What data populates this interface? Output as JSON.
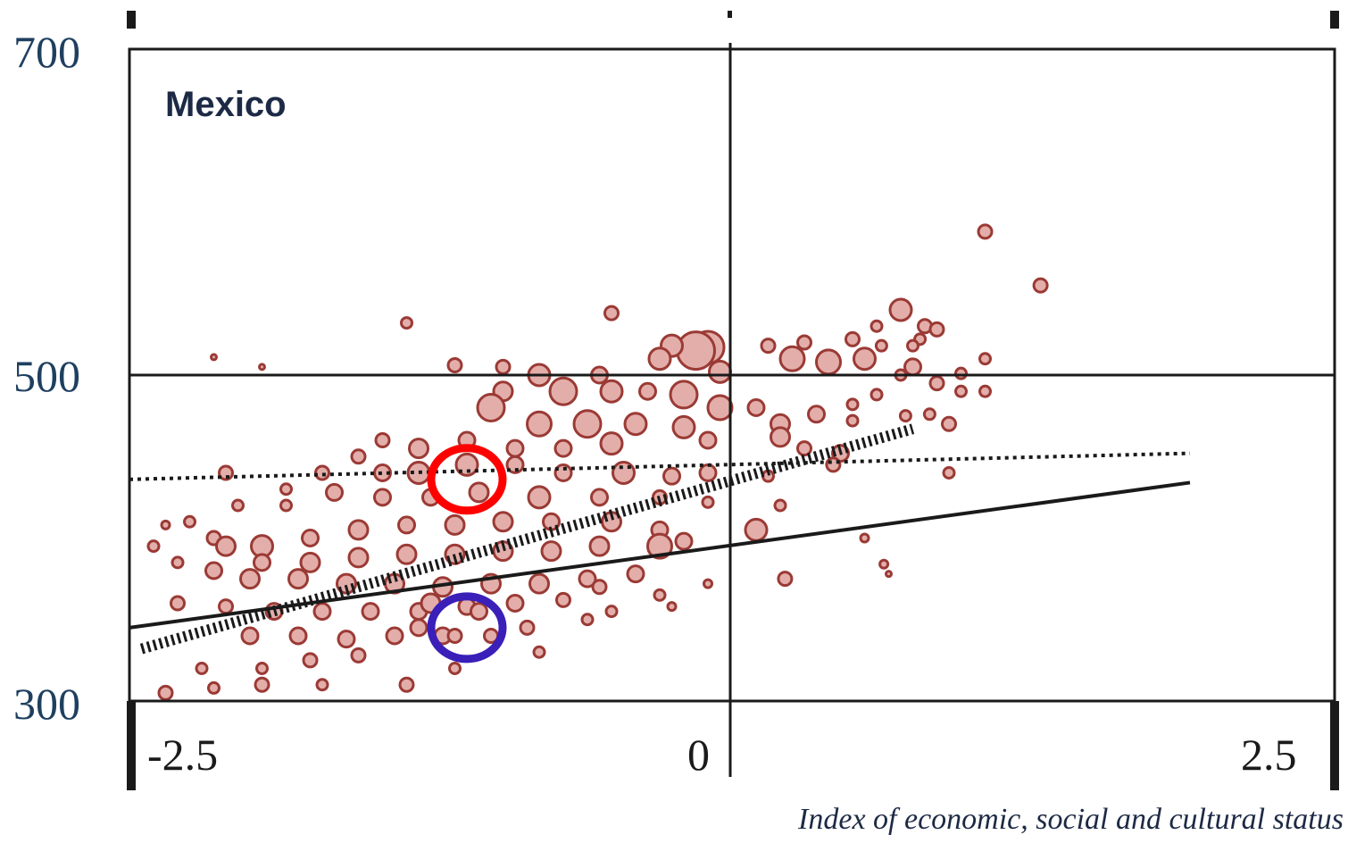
{
  "chart_data": {
    "type": "scatter",
    "title": "Mexico",
    "xlabel": "Index of economic, social and cultural status",
    "ylabel": "",
    "xlim": [
      -2.5,
      2.5
    ],
    "ylim": [
      300,
      700
    ],
    "x_ticks": [
      "-2.5",
      "0",
      "2.5"
    ],
    "y_ticks": [
      "700",
      "500",
      "300"
    ],
    "grid": false,
    "reference_lines": {
      "x": 0,
      "y": 500
    },
    "colors": {
      "point_stroke": "#9b3a35",
      "point_fill": "#e3aeaa",
      "text": "#1d2a45",
      "highlight_red": "#ff0000",
      "highlight_blue": "#3a1fb8"
    },
    "series": [
      {
        "type": "scatter",
        "note_size": "marker area proportional to school size",
        "points": [
          [
            1.05,
            588,
            5
          ],
          [
            1.28,
            555,
            5
          ],
          [
            0.7,
            540,
            8
          ],
          [
            0.6,
            530,
            4
          ],
          [
            0.8,
            530,
            5
          ],
          [
            0.85,
            528,
            5
          ],
          [
            0.78,
            522,
            4
          ],
          [
            0.5,
            522,
            5
          ],
          [
            0.62,
            518,
            4
          ],
          [
            -0.1,
            517,
            12
          ],
          [
            -0.15,
            515,
            14
          ],
          [
            -0.25,
            518,
            8
          ],
          [
            -0.5,
            538,
            5
          ],
          [
            -1.35,
            532,
            4
          ],
          [
            -2.15,
            511,
            2
          ],
          [
            -1.95,
            505,
            2
          ],
          [
            0.15,
            518,
            5
          ],
          [
            0.3,
            520,
            5
          ],
          [
            0.25,
            510,
            9
          ],
          [
            0.4,
            508,
            9
          ],
          [
            0.55,
            510,
            8
          ],
          [
            0.75,
            505,
            6
          ],
          [
            0.95,
            501,
            4
          ],
          [
            0.7,
            500,
            4
          ],
          [
            0.85,
            495,
            5
          ],
          [
            0.6,
            488,
            4
          ],
          [
            0.5,
            482,
            4
          ],
          [
            0.72,
            475,
            4
          ],
          [
            0.82,
            476,
            4
          ],
          [
            0.9,
            470,
            5
          ],
          [
            0.35,
            476,
            6
          ],
          [
            0.2,
            470,
            7
          ],
          [
            0.1,
            480,
            6
          ],
          [
            0.2,
            462,
            7
          ],
          [
            0.3,
            455,
            5
          ],
          [
            0.45,
            452,
            6
          ],
          [
            0.5,
            472,
            4
          ],
          [
            -0.05,
            502,
            8
          ],
          [
            -0.3,
            510,
            8
          ],
          [
            -0.55,
            500,
            6
          ],
          [
            -0.8,
            500,
            8
          ],
          [
            -1.15,
            506,
            5
          ],
          [
            -0.95,
            505,
            5
          ],
          [
            -0.95,
            490,
            7
          ],
          [
            -1.0,
            480,
            10
          ],
          [
            -0.7,
            490,
            10
          ],
          [
            -0.5,
            490,
            8
          ],
          [
            -0.35,
            490,
            6
          ],
          [
            -0.2,
            488,
            10
          ],
          [
            -0.05,
            480,
            9
          ],
          [
            -0.6,
            470,
            10
          ],
          [
            -0.8,
            470,
            9
          ],
          [
            -0.4,
            470,
            8
          ],
          [
            -0.2,
            468,
            8
          ],
          [
            -0.1,
            460,
            6
          ],
          [
            -0.5,
            458,
            8
          ],
          [
            -0.7,
            455,
            6
          ],
          [
            -0.9,
            455,
            6
          ],
          [
            -1.1,
            460,
            6
          ],
          [
            -1.3,
            455,
            7
          ],
          [
            -1.45,
            460,
            5
          ],
          [
            -1.45,
            440,
            6
          ],
          [
            -1.55,
            450,
            5
          ],
          [
            -1.3,
            440,
            8
          ],
          [
            -1.1,
            445,
            8
          ],
          [
            -0.9,
            445,
            6
          ],
          [
            -0.7,
            440,
            6
          ],
          [
            -0.45,
            440,
            8
          ],
          [
            -0.25,
            438,
            6
          ],
          [
            -0.1,
            440,
            6
          ],
          [
            -0.3,
            425,
            5
          ],
          [
            -0.55,
            425,
            6
          ],
          [
            -0.8,
            425,
            8
          ],
          [
            -1.05,
            428,
            7
          ],
          [
            -1.25,
            425,
            6
          ],
          [
            -1.45,
            425,
            6
          ],
          [
            -1.65,
            428,
            6
          ],
          [
            -1.85,
            430,
            4
          ],
          [
            -2.1,
            440,
            5
          ],
          [
            -1.7,
            440,
            5
          ],
          [
            -1.85,
            420,
            4
          ],
          [
            -2.05,
            420,
            4
          ],
          [
            -2.25,
            410,
            4
          ],
          [
            -2.15,
            400,
            5
          ],
          [
            -2.4,
            395,
            4
          ],
          [
            -2.35,
            408,
            3
          ],
          [
            -2.1,
            395,
            7
          ],
          [
            -1.95,
            395,
            8
          ],
          [
            -1.75,
            400,
            6
          ],
          [
            -1.55,
            405,
            7
          ],
          [
            -1.35,
            408,
            6
          ],
          [
            -1.15,
            408,
            7
          ],
          [
            -0.95,
            410,
            7
          ],
          [
            -0.75,
            410,
            6
          ],
          [
            -0.5,
            410,
            7
          ],
          [
            -0.3,
            405,
            6
          ],
          [
            -0.2,
            398,
            6
          ],
          [
            0.1,
            405,
            8
          ],
          [
            0.2,
            420,
            4
          ],
          [
            -0.3,
            395,
            9
          ],
          [
            -0.55,
            395,
            7
          ],
          [
            -0.75,
            392,
            7
          ],
          [
            -0.95,
            392,
            7
          ],
          [
            -1.15,
            390,
            7
          ],
          [
            -1.35,
            390,
            7
          ],
          [
            -1.55,
            388,
            7
          ],
          [
            -1.75,
            385,
            7
          ],
          [
            -1.95,
            385,
            6
          ],
          [
            -2.15,
            380,
            6
          ],
          [
            -2.3,
            385,
            4
          ],
          [
            -2.0,
            375,
            7
          ],
          [
            -1.8,
            375,
            7
          ],
          [
            -1.6,
            372,
            7
          ],
          [
            -1.4,
            372,
            7
          ],
          [
            -1.2,
            370,
            7
          ],
          [
            -1.0,
            372,
            7
          ],
          [
            -0.8,
            372,
            7
          ],
          [
            -0.6,
            375,
            6
          ],
          [
            -0.4,
            378,
            6
          ],
          [
            -0.3,
            365,
            4
          ],
          [
            -0.9,
            360,
            6
          ],
          [
            -1.1,
            358,
            6
          ],
          [
            -1.3,
            355,
            6
          ],
          [
            -1.5,
            355,
            6
          ],
          [
            -1.7,
            355,
            6
          ],
          [
            -1.9,
            355,
            6
          ],
          [
            -2.1,
            358,
            5
          ],
          [
            -2.3,
            360,
            5
          ],
          [
            -2.0,
            340,
            6
          ],
          [
            -1.8,
            340,
            6
          ],
          [
            -1.6,
            338,
            6
          ],
          [
            -1.4,
            340,
            6
          ],
          [
            -1.2,
            340,
            6
          ],
          [
            -1.0,
            340,
            5
          ],
          [
            -1.55,
            328,
            5
          ],
          [
            -1.75,
            325,
            5
          ],
          [
            -1.95,
            320,
            4
          ],
          [
            -2.2,
            320,
            4
          ],
          [
            -2.35,
            305,
            5
          ],
          [
            -2.15,
            308,
            4
          ],
          [
            -1.95,
            310,
            5
          ],
          [
            -1.7,
            310,
            4
          ],
          [
            -1.35,
            310,
            5
          ],
          [
            -1.15,
            320,
            4
          ],
          [
            -0.8,
            330,
            4
          ],
          [
            -1.15,
            340,
            5
          ],
          [
            -1.3,
            345,
            6
          ],
          [
            -1.25,
            360,
            7
          ],
          [
            -1.05,
            355,
            6
          ],
          [
            -0.85,
            345,
            5
          ],
          [
            -0.6,
            350,
            4
          ],
          [
            -0.5,
            355,
            4
          ],
          [
            -0.7,
            362,
            5
          ],
          [
            -0.55,
            370,
            5
          ],
          [
            1.05,
            510,
            4
          ],
          [
            0.75,
            518,
            4
          ],
          [
            0.95,
            490,
            4
          ],
          [
            1.05,
            490,
            4
          ],
          [
            0.55,
            400,
            3
          ],
          [
            0.22,
            375,
            5
          ],
          [
            0.63,
            384,
            3
          ],
          [
            0.65,
            378,
            2
          ],
          [
            0.9,
            440,
            4
          ],
          [
            0.15,
            438,
            4
          ],
          [
            0.42,
            445,
            5
          ],
          [
            -0.1,
            422,
            4
          ],
          [
            -0.25,
            358,
            3
          ],
          [
            -0.1,
            372,
            3
          ]
        ]
      }
    ],
    "lines": [
      {
        "style": "solid",
        "points": [
          [
            -2.5,
            345
          ],
          [
            1.9,
            434
          ]
        ]
      },
      {
        "style": "dotted-thin",
        "points": [
          [
            -2.5,
            436
          ],
          [
            1.9,
            452
          ]
        ]
      },
      {
        "style": "dotted-thick",
        "points": [
          [
            -2.45,
            332
          ],
          [
            0.75,
            467
          ]
        ]
      }
    ],
    "highlights": [
      {
        "color": "red",
        "x": -1.1,
        "y": 436
      },
      {
        "color": "blue",
        "x": -1.1,
        "y": 345
      }
    ]
  }
}
